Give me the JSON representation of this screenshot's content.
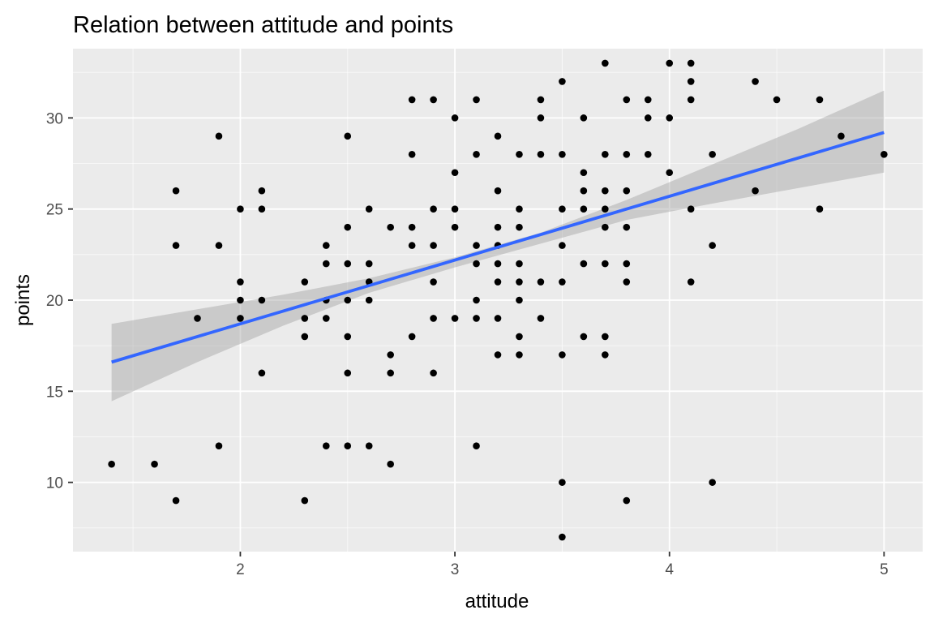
{
  "chart_data": {
    "type": "scatter",
    "title": "Relation between attitude and points",
    "xlabel": "attitude",
    "ylabel": "points",
    "xlim": [
      1.22,
      5.18
    ],
    "ylim": [
      6.2,
      33.8
    ],
    "x_ticks": [
      2,
      3,
      4,
      5
    ],
    "y_ticks": [
      10,
      15,
      20,
      25,
      30
    ],
    "grid": true,
    "points": [
      [
        1.4,
        11
      ],
      [
        1.6,
        11
      ],
      [
        1.7,
        9
      ],
      [
        1.7,
        23
      ],
      [
        1.7,
        26
      ],
      [
        1.8,
        19
      ],
      [
        1.9,
        12
      ],
      [
        1.9,
        23
      ],
      [
        1.9,
        29
      ],
      [
        2.0,
        19
      ],
      [
        2.0,
        20
      ],
      [
        2.0,
        21
      ],
      [
        2.0,
        25
      ],
      [
        2.1,
        16
      ],
      [
        2.1,
        20
      ],
      [
        2.1,
        25
      ],
      [
        2.1,
        26
      ],
      [
        2.3,
        9
      ],
      [
        2.3,
        18
      ],
      [
        2.3,
        19
      ],
      [
        2.3,
        21
      ],
      [
        2.4,
        12
      ],
      [
        2.4,
        19
      ],
      [
        2.4,
        20
      ],
      [
        2.4,
        22
      ],
      [
        2.4,
        23
      ],
      [
        2.5,
        12
      ],
      [
        2.5,
        16
      ],
      [
        2.5,
        18
      ],
      [
        2.5,
        20
      ],
      [
        2.5,
        22
      ],
      [
        2.5,
        24
      ],
      [
        2.5,
        29
      ],
      [
        2.6,
        12
      ],
      [
        2.6,
        20
      ],
      [
        2.6,
        21
      ],
      [
        2.6,
        22
      ],
      [
        2.6,
        25
      ],
      [
        2.7,
        11
      ],
      [
        2.7,
        16
      ],
      [
        2.7,
        17
      ],
      [
        2.7,
        24
      ],
      [
        2.8,
        18
      ],
      [
        2.8,
        23
      ],
      [
        2.8,
        24
      ],
      [
        2.8,
        28
      ],
      [
        2.8,
        31
      ],
      [
        2.9,
        16
      ],
      [
        2.9,
        19
      ],
      [
        2.9,
        21
      ],
      [
        2.9,
        23
      ],
      [
        2.9,
        25
      ],
      [
        2.9,
        31
      ],
      [
        3.0,
        19
      ],
      [
        3.0,
        24
      ],
      [
        3.0,
        25
      ],
      [
        3.0,
        27
      ],
      [
        3.0,
        30
      ],
      [
        3.1,
        12
      ],
      [
        3.1,
        19
      ],
      [
        3.1,
        20
      ],
      [
        3.1,
        22
      ],
      [
        3.1,
        23
      ],
      [
        3.1,
        28
      ],
      [
        3.1,
        31
      ],
      [
        3.2,
        17
      ],
      [
        3.2,
        19
      ],
      [
        3.2,
        21
      ],
      [
        3.2,
        22
      ],
      [
        3.2,
        23
      ],
      [
        3.2,
        24
      ],
      [
        3.2,
        26
      ],
      [
        3.2,
        29
      ],
      [
        3.3,
        17
      ],
      [
        3.3,
        18
      ],
      [
        3.3,
        20
      ],
      [
        3.3,
        21
      ],
      [
        3.3,
        22
      ],
      [
        3.3,
        24
      ],
      [
        3.3,
        25
      ],
      [
        3.3,
        28
      ],
      [
        3.4,
        19
      ],
      [
        3.4,
        21
      ],
      [
        3.4,
        28
      ],
      [
        3.4,
        30
      ],
      [
        3.4,
        31
      ],
      [
        3.5,
        7
      ],
      [
        3.5,
        10
      ],
      [
        3.5,
        17
      ],
      [
        3.5,
        21
      ],
      [
        3.5,
        23
      ],
      [
        3.5,
        25
      ],
      [
        3.5,
        28
      ],
      [
        3.5,
        32
      ],
      [
        3.6,
        18
      ],
      [
        3.6,
        22
      ],
      [
        3.6,
        25
      ],
      [
        3.6,
        26
      ],
      [
        3.6,
        27
      ],
      [
        3.6,
        30
      ],
      [
        3.7,
        17
      ],
      [
        3.7,
        18
      ],
      [
        3.7,
        22
      ],
      [
        3.7,
        24
      ],
      [
        3.7,
        25
      ],
      [
        3.7,
        26
      ],
      [
        3.7,
        28
      ],
      [
        3.7,
        33
      ],
      [
        3.8,
        9
      ],
      [
        3.8,
        21
      ],
      [
        3.8,
        22
      ],
      [
        3.8,
        24
      ],
      [
        3.8,
        26
      ],
      [
        3.8,
        28
      ],
      [
        3.8,
        31
      ],
      [
        3.9,
        28
      ],
      [
        3.9,
        30
      ],
      [
        3.9,
        31
      ],
      [
        4.0,
        27
      ],
      [
        4.0,
        30
      ],
      [
        4.0,
        33
      ],
      [
        4.1,
        21
      ],
      [
        4.1,
        25
      ],
      [
        4.1,
        31
      ],
      [
        4.1,
        32
      ],
      [
        4.1,
        33
      ],
      [
        4.2,
        10
      ],
      [
        4.2,
        23
      ],
      [
        4.2,
        28
      ],
      [
        4.4,
        26
      ],
      [
        4.4,
        32
      ],
      [
        4.5,
        31
      ],
      [
        4.7,
        25
      ],
      [
        4.7,
        31
      ],
      [
        4.8,
        29
      ],
      [
        5.0,
        28
      ]
    ],
    "fit_line": {
      "color": "#3366ff",
      "x": [
        1.4,
        5.0
      ],
      "y": [
        16.6,
        29.2
      ],
      "ci_lower": [
        [
          1.4,
          14.45
        ],
        [
          1.8,
          16.6
        ],
        [
          2.2,
          18.6
        ],
        [
          2.6,
          20.4
        ],
        [
          3.0,
          21.8
        ],
        [
          3.4,
          23.1
        ],
        [
          3.8,
          24.4
        ],
        [
          4.2,
          25.3
        ],
        [
          4.6,
          26.15
        ],
        [
          5.0,
          27.0
        ]
      ],
      "ci_upper": [
        [
          1.4,
          18.7
        ],
        [
          1.8,
          19.5
        ],
        [
          2.2,
          20.3
        ],
        [
          2.6,
          21.2
        ],
        [
          3.0,
          22.35
        ],
        [
          3.4,
          23.7
        ],
        [
          3.8,
          25.5
        ],
        [
          4.2,
          27.45
        ],
        [
          4.6,
          29.4
        ],
        [
          5.0,
          31.5
        ]
      ]
    },
    "colors": {
      "panel_background": "#ebebeb",
      "grid_major": "#ffffff",
      "point": "#000000",
      "ribbon": "#999999",
      "fit_line": "#3366ff",
      "tick_label": "#4d4d4d"
    }
  }
}
